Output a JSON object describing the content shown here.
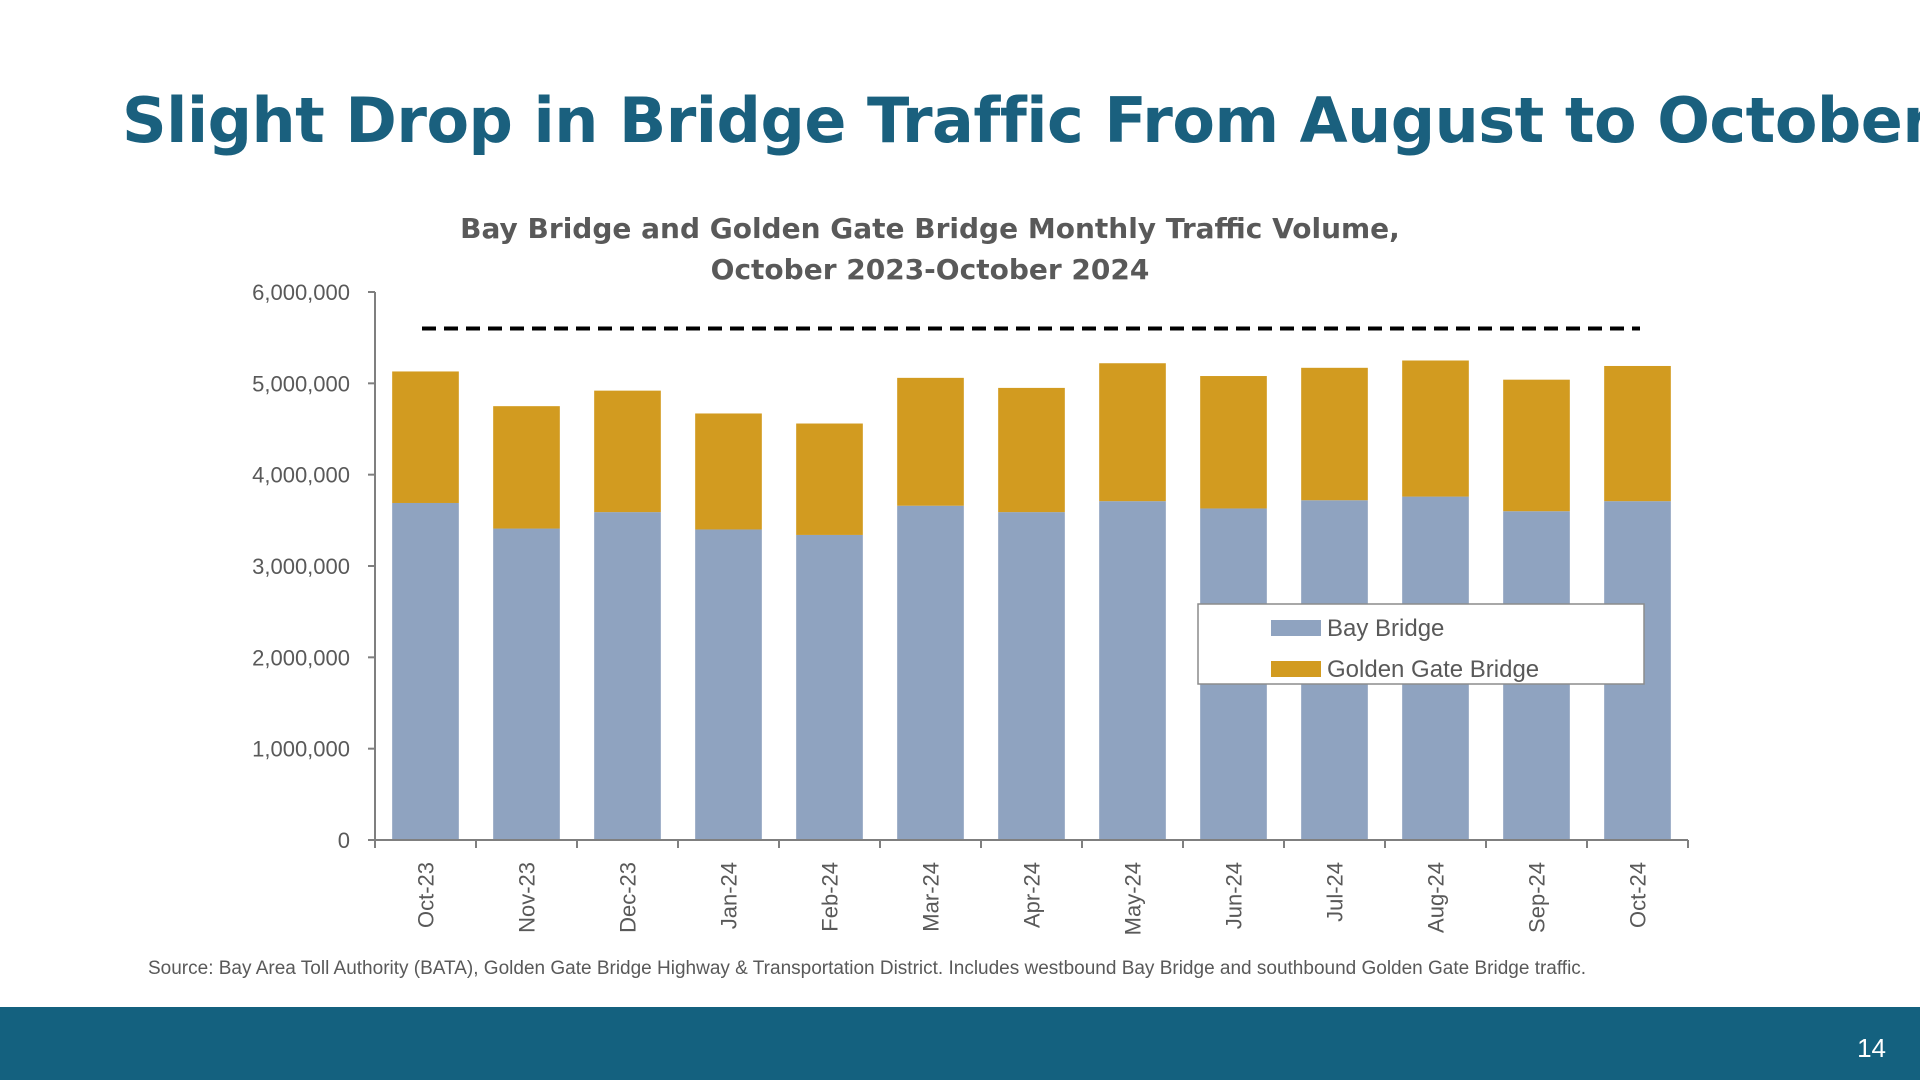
{
  "slide": {
    "title": "Slight Drop in Bridge Traffic From August to October",
    "source_note": "Source: Bay Area Toll Authority (BATA), Golden Gate Bridge Highway & Transportation District. Includes westbound Bay Bridge and southbound Golden Gate Bridge traffic.",
    "page_number": "14",
    "footer_color": "#14617f",
    "title_color": "#1a607e"
  },
  "chart_data": {
    "type": "bar",
    "stacked": true,
    "title_lines": [
      "Bay Bridge and Golden Gate Bridge Monthly Traffic Volume,",
      "October 2023-October 2024"
    ],
    "categories": [
      "Oct-23",
      "Nov-23",
      "Dec-23",
      "Jan-24",
      "Feb-24",
      "Mar-24",
      "Apr-24",
      "May-24",
      "Jun-24",
      "Jul-24",
      "Aug-24",
      "Sep-24",
      "Oct-24"
    ],
    "series": [
      {
        "name": "Bay Bridge",
        "color": "#8fa3c0",
        "values": [
          3690000,
          3410000,
          3590000,
          3400000,
          3340000,
          3660000,
          3590000,
          3710000,
          3630000,
          3720000,
          3760000,
          3600000,
          3710000
        ]
      },
      {
        "name": "Golden Gate Bridge",
        "color": "#d29b20",
        "values": [
          1440000,
          1340000,
          1330000,
          1270000,
          1220000,
          1400000,
          1360000,
          1510000,
          1450000,
          1450000,
          1490000,
          1440000,
          1480000
        ]
      }
    ],
    "reference_line": {
      "value": 5600000,
      "style": "dashed",
      "color": "#000000"
    },
    "ylim": [
      0,
      6000000
    ],
    "y_ticks": [
      0,
      1000000,
      2000000,
      3000000,
      4000000,
      5000000,
      6000000
    ],
    "y_tick_labels": [
      "0",
      "1,000,000",
      "2,000,000",
      "3,000,000",
      "4,000,000",
      "5,000,000",
      "6,000,000"
    ],
    "xlabel": "",
    "ylabel": "",
    "grid": false,
    "legend_position": "lower-right"
  }
}
